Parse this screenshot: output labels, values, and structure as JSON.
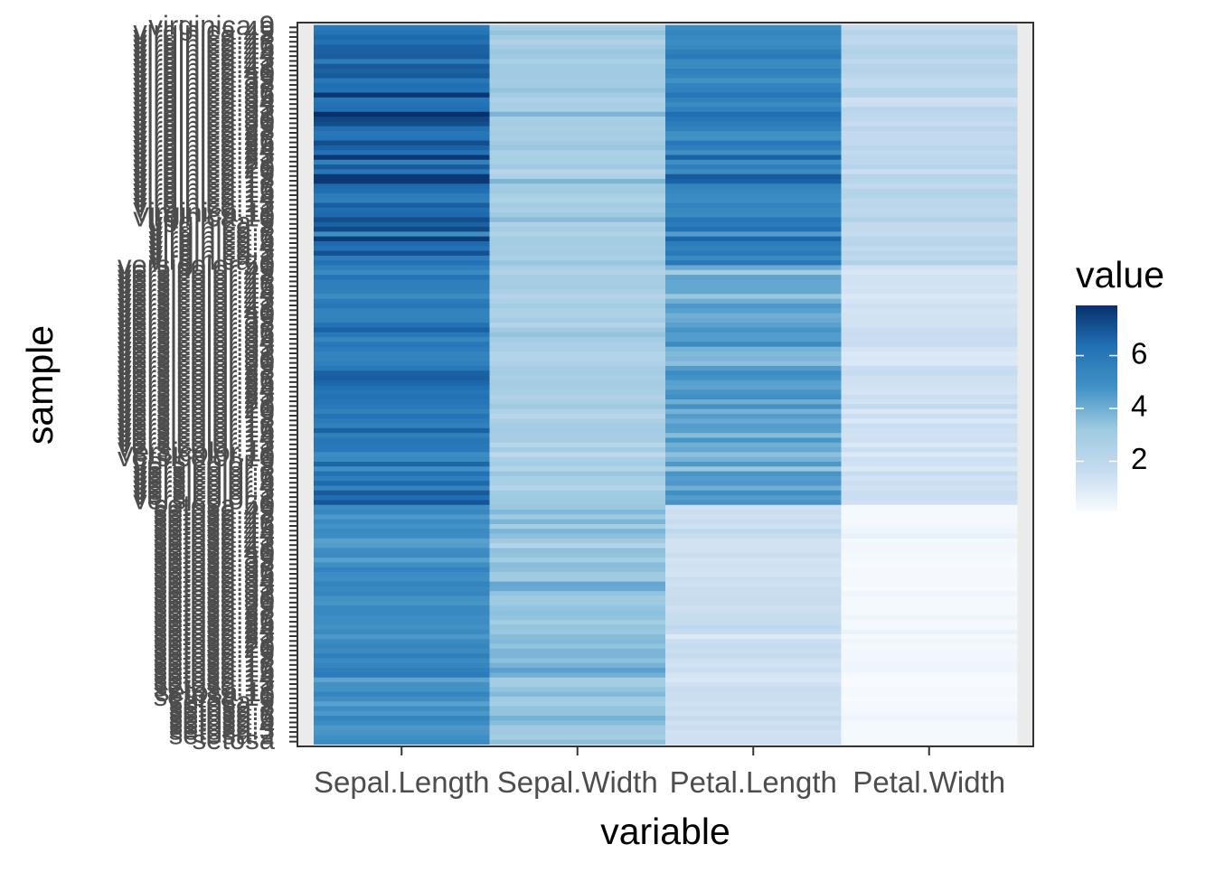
{
  "chart_data": {
    "type": "heatmap",
    "xlabel": "variable",
    "ylabel": "sample",
    "x_categories": [
      "Sepal.Length",
      "Sepal.Width",
      "Petal.Length",
      "Petal.Width"
    ],
    "y_groups": [
      "setosa",
      "versicolor",
      "virginica"
    ],
    "y_top_label": "virginica.9",
    "y_bottom_label": "setosa",
    "legend": {
      "title": "value",
      "ticks": [
        2,
        4,
        6
      ],
      "range": [
        0.1,
        7.9
      ],
      "placement": "right",
      "color_low": "#f7fbff",
      "color_high": "#08306b"
    },
    "grid": false,
    "note_rows": "150 samples (50 per species), rows ordered bottom to top: setosa, versicolor, virginica",
    "rows": {
      "setosa": [
        [
          5.1,
          3.5,
          1.4,
          0.2
        ],
        [
          4.9,
          3.0,
          1.4,
          0.2
        ],
        [
          4.7,
          3.2,
          1.3,
          0.2
        ],
        [
          4.6,
          3.1,
          1.5,
          0.2
        ],
        [
          5.0,
          3.6,
          1.4,
          0.2
        ],
        [
          5.4,
          3.9,
          1.7,
          0.4
        ],
        [
          4.6,
          3.4,
          1.4,
          0.3
        ],
        [
          5.0,
          3.4,
          1.5,
          0.2
        ],
        [
          4.4,
          2.9,
          1.4,
          0.2
        ],
        [
          4.9,
          3.1,
          1.5,
          0.1
        ],
        [
          5.4,
          3.7,
          1.5,
          0.2
        ],
        [
          4.8,
          3.4,
          1.6,
          0.2
        ],
        [
          4.8,
          3.0,
          1.4,
          0.1
        ],
        [
          4.3,
          3.0,
          1.1,
          0.1
        ],
        [
          5.8,
          4.0,
          1.2,
          0.2
        ],
        [
          5.7,
          4.4,
          1.5,
          0.4
        ],
        [
          5.4,
          3.9,
          1.3,
          0.4
        ],
        [
          5.1,
          3.5,
          1.4,
          0.3
        ],
        [
          5.7,
          3.8,
          1.7,
          0.3
        ],
        [
          5.1,
          3.8,
          1.5,
          0.3
        ],
        [
          5.4,
          3.4,
          1.7,
          0.2
        ],
        [
          5.1,
          3.7,
          1.5,
          0.4
        ],
        [
          4.6,
          3.6,
          1.0,
          0.2
        ],
        [
          5.1,
          3.3,
          1.7,
          0.5
        ],
        [
          4.8,
          3.4,
          1.9,
          0.2
        ],
        [
          5.0,
          3.0,
          1.6,
          0.2
        ],
        [
          5.0,
          3.4,
          1.6,
          0.4
        ],
        [
          5.2,
          3.5,
          1.5,
          0.2
        ],
        [
          5.2,
          3.4,
          1.4,
          0.2
        ],
        [
          4.7,
          3.2,
          1.6,
          0.2
        ],
        [
          4.8,
          3.1,
          1.6,
          0.2
        ],
        [
          5.4,
          3.4,
          1.5,
          0.4
        ],
        [
          5.2,
          4.1,
          1.5,
          0.1
        ],
        [
          5.5,
          4.2,
          1.4,
          0.2
        ],
        [
          4.9,
          3.1,
          1.5,
          0.2
        ],
        [
          5.0,
          3.2,
          1.2,
          0.2
        ],
        [
          5.5,
          3.5,
          1.3,
          0.2
        ],
        [
          4.9,
          3.6,
          1.4,
          0.1
        ],
        [
          4.4,
          3.0,
          1.3,
          0.2
        ],
        [
          5.1,
          3.4,
          1.5,
          0.2
        ],
        [
          5.0,
          3.5,
          1.3,
          0.3
        ],
        [
          4.5,
          2.3,
          1.3,
          0.3
        ],
        [
          4.4,
          3.2,
          1.3,
          0.2
        ],
        [
          5.0,
          3.5,
          1.6,
          0.6
        ],
        [
          5.1,
          3.8,
          1.9,
          0.4
        ],
        [
          4.8,
          3.0,
          1.4,
          0.3
        ],
        [
          5.1,
          3.8,
          1.6,
          0.2
        ],
        [
          4.6,
          3.2,
          1.4,
          0.2
        ],
        [
          5.3,
          3.7,
          1.5,
          0.2
        ],
        [
          5.0,
          3.3,
          1.4,
          0.2
        ]
      ],
      "versicolor": [
        [
          7.0,
          3.2,
          4.7,
          1.4
        ],
        [
          6.4,
          3.2,
          4.5,
          1.5
        ],
        [
          6.9,
          3.1,
          4.9,
          1.5
        ],
        [
          5.5,
          2.3,
          4.0,
          1.3
        ],
        [
          6.5,
          2.8,
          4.6,
          1.5
        ],
        [
          5.7,
          2.8,
          4.5,
          1.3
        ],
        [
          6.3,
          3.3,
          4.7,
          1.6
        ],
        [
          4.9,
          2.4,
          3.3,
          1.0
        ],
        [
          6.6,
          2.9,
          4.6,
          1.3
        ],
        [
          5.2,
          2.7,
          3.9,
          1.4
        ],
        [
          5.0,
          2.0,
          3.5,
          1.0
        ],
        [
          5.9,
          3.0,
          4.2,
          1.5
        ],
        [
          6.0,
          2.2,
          4.0,
          1.0
        ],
        [
          6.1,
          2.9,
          4.7,
          1.4
        ],
        [
          5.6,
          2.9,
          3.6,
          1.3
        ],
        [
          6.7,
          3.1,
          4.4,
          1.4
        ],
        [
          5.6,
          3.0,
          4.5,
          1.5
        ],
        [
          5.8,
          2.7,
          4.1,
          1.0
        ],
        [
          6.2,
          2.2,
          4.5,
          1.5
        ],
        [
          5.6,
          2.5,
          3.9,
          1.1
        ],
        [
          5.9,
          3.2,
          4.8,
          1.8
        ],
        [
          6.1,
          2.8,
          4.0,
          1.3
        ],
        [
          6.3,
          2.5,
          4.9,
          1.5
        ],
        [
          6.1,
          2.8,
          4.7,
          1.2
        ],
        [
          6.4,
          2.9,
          4.3,
          1.3
        ],
        [
          6.6,
          3.0,
          4.4,
          1.4
        ],
        [
          6.8,
          2.8,
          4.8,
          1.4
        ],
        [
          6.7,
          3.0,
          5.0,
          1.7
        ],
        [
          6.0,
          2.9,
          4.5,
          1.5
        ],
        [
          5.7,
          2.6,
          3.5,
          1.0
        ],
        [
          5.5,
          2.4,
          3.8,
          1.1
        ],
        [
          5.5,
          2.4,
          3.7,
          1.0
        ],
        [
          5.8,
          2.7,
          3.9,
          1.2
        ],
        [
          6.0,
          2.7,
          5.1,
          1.6
        ],
        [
          5.4,
          3.0,
          4.5,
          1.5
        ],
        [
          6.0,
          3.4,
          4.5,
          1.6
        ],
        [
          6.7,
          3.1,
          4.7,
          1.5
        ],
        [
          6.3,
          2.3,
          4.4,
          1.3
        ],
        [
          5.6,
          3.0,
          4.1,
          1.3
        ],
        [
          5.5,
          2.5,
          4.0,
          1.3
        ],
        [
          5.5,
          2.6,
          4.4,
          1.2
        ],
        [
          6.1,
          3.0,
          4.6,
          1.4
        ],
        [
          5.8,
          2.6,
          4.0,
          1.2
        ],
        [
          5.0,
          2.3,
          3.3,
          1.0
        ],
        [
          5.6,
          2.7,
          4.2,
          1.3
        ],
        [
          5.7,
          3.0,
          4.2,
          1.2
        ],
        [
          5.7,
          2.9,
          4.2,
          1.3
        ],
        [
          6.2,
          2.9,
          4.3,
          1.3
        ],
        [
          5.1,
          2.5,
          3.0,
          1.1
        ],
        [
          5.7,
          2.8,
          4.1,
          1.3
        ]
      ],
      "virginica": [
        [
          6.3,
          3.3,
          6.0,
          2.5
        ],
        [
          5.8,
          2.7,
          5.1,
          1.9
        ],
        [
          7.1,
          3.0,
          5.9,
          2.1
        ],
        [
          6.3,
          2.9,
          5.6,
          1.8
        ],
        [
          6.5,
          3.0,
          5.8,
          2.2
        ],
        [
          7.6,
          3.0,
          6.6,
          2.1
        ],
        [
          4.9,
          2.5,
          4.5,
          1.7
        ],
        [
          7.3,
          2.9,
          6.3,
          1.8
        ],
        [
          6.7,
          2.5,
          5.8,
          1.8
        ],
        [
          7.2,
          3.6,
          6.1,
          2.5
        ],
        [
          6.5,
          3.2,
          5.1,
          2.0
        ],
        [
          6.4,
          2.7,
          5.3,
          1.9
        ],
        [
          6.8,
          3.0,
          5.5,
          2.1
        ],
        [
          5.7,
          2.5,
          5.0,
          2.0
        ],
        [
          5.8,
          2.8,
          5.1,
          2.4
        ],
        [
          6.4,
          3.2,
          5.3,
          2.3
        ],
        [
          6.5,
          3.0,
          5.5,
          1.8
        ],
        [
          7.7,
          3.8,
          6.7,
          2.2
        ],
        [
          7.7,
          2.6,
          6.9,
          2.3
        ],
        [
          6.0,
          2.2,
          5.0,
          1.5
        ],
        [
          6.9,
          3.2,
          5.7,
          2.3
        ],
        [
          5.6,
          2.8,
          4.9,
          2.0
        ],
        [
          7.7,
          2.8,
          6.7,
          2.0
        ],
        [
          6.3,
          2.7,
          4.9,
          1.8
        ],
        [
          6.7,
          3.3,
          5.7,
          2.1
        ],
        [
          7.2,
          3.2,
          6.0,
          1.8
        ],
        [
          6.2,
          2.8,
          4.8,
          1.8
        ],
        [
          6.1,
          3.0,
          4.9,
          1.8
        ],
        [
          6.4,
          2.8,
          5.6,
          2.1
        ],
        [
          7.2,
          3.0,
          5.8,
          1.6
        ],
        [
          7.4,
          2.8,
          6.1,
          1.9
        ],
        [
          7.9,
          3.8,
          6.4,
          2.0
        ],
        [
          6.4,
          2.8,
          5.6,
          2.2
        ],
        [
          6.3,
          2.8,
          5.1,
          1.5
        ],
        [
          6.1,
          2.6,
          5.6,
          1.4
        ],
        [
          7.7,
          3.0,
          6.1,
          2.3
        ],
        [
          6.3,
          3.4,
          5.6,
          2.4
        ],
        [
          6.4,
          3.1,
          5.5,
          1.8
        ],
        [
          6.0,
          3.0,
          4.8,
          1.8
        ],
        [
          6.9,
          3.1,
          5.4,
          2.1
        ],
        [
          6.7,
          3.1,
          5.6,
          2.4
        ],
        [
          6.9,
          3.1,
          5.1,
          2.3
        ],
        [
          5.8,
          2.7,
          5.1,
          1.9
        ],
        [
          6.8,
          3.2,
          5.9,
          2.3
        ],
        [
          6.7,
          3.3,
          5.7,
          2.5
        ],
        [
          6.7,
          3.0,
          5.2,
          2.3
        ],
        [
          6.3,
          2.5,
          5.0,
          1.9
        ],
        [
          6.5,
          3.0,
          5.2,
          2.0
        ],
        [
          6.2,
          3.4,
          5.4,
          2.3
        ],
        [
          5.9,
          3.0,
          5.1,
          1.8
        ]
      ]
    }
  }
}
